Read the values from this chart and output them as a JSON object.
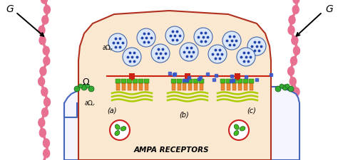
{
  "bg_color": "#ffffff",
  "presynaptic_fill": "#fbe8d0",
  "presynaptic_border": "#b03020",
  "spine_color": "#e8709090",
  "spine_color_solid": "#e87090",
  "vesicle_fill": "#dce8f8",
  "vesicle_border": "#4466aa",
  "vesicle_dot_color": "#2244aa",
  "cleft_dot_color": "#3355cc",
  "ampa_green": "#44bb22",
  "ampa_orange": "#ee8833",
  "scaffold_yellow": "#aacc00",
  "scaffold_olive": "#88aa00",
  "red_filament": "#cc2211",
  "blue_cell": "#4466bb",
  "green_receptor": "#33aa33",
  "title": "AMPA RECEPTORS",
  "label_a": "(a)",
  "label_b": "(b)",
  "label_c": "(c)",
  "label_G": "G",
  "figsize": [
    4.74,
    2.26
  ],
  "dpi": 100
}
